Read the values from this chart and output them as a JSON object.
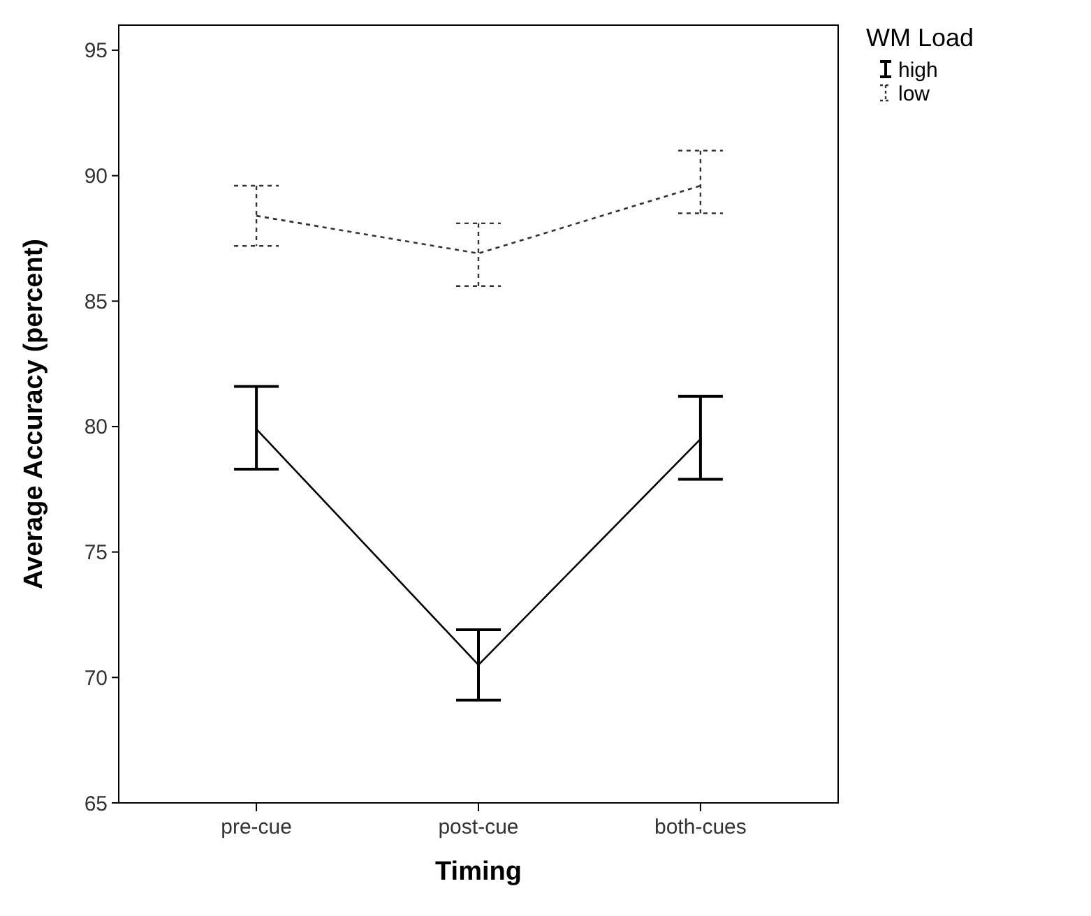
{
  "chart_data": {
    "type": "line",
    "xlabel": "Timing",
    "ylabel": "Average Accuracy (percent)",
    "legend_title": "WM Load",
    "categories": [
      "pre-cue",
      "post-cue",
      "both-cues"
    ],
    "series": [
      {
        "name": "high",
        "color": "#000000",
        "line_style": "solid",
        "values": [
          79.9,
          70.5,
          79.5
        ],
        "errors": [
          [
            78.3,
            81.6
          ],
          [
            69.1,
            71.9
          ],
          [
            77.9,
            81.2
          ]
        ]
      },
      {
        "name": "low",
        "color": "#333333",
        "line_style": "dashed",
        "values": [
          88.4,
          86.9,
          89.6
        ],
        "errors": [
          [
            87.2,
            89.6
          ],
          [
            85.6,
            88.1
          ],
          [
            88.5,
            91.0
          ]
        ]
      }
    ],
    "ylim": [
      65,
      96
    ],
    "yticks": [
      65,
      70,
      75,
      80,
      85,
      90,
      95
    ],
    "grid": false,
    "legend": "top right",
    "marker": "none"
  }
}
